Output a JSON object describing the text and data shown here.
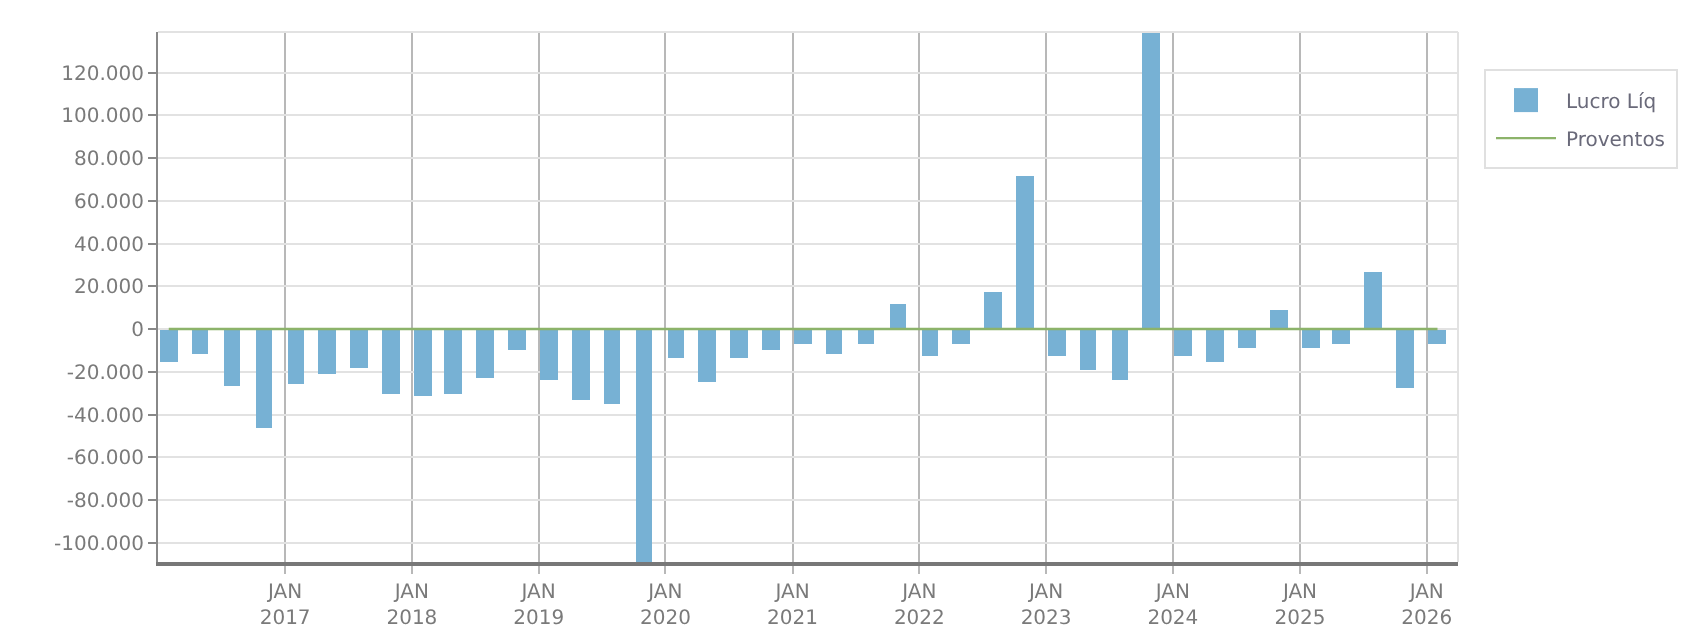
{
  "chart_data": {
    "type": "bar",
    "x": [
      "2016-02",
      "2016-05",
      "2016-08",
      "2016-11",
      "2017-02",
      "2017-05",
      "2017-08",
      "2017-11",
      "2018-02",
      "2018-05",
      "2018-08",
      "2018-11",
      "2019-02",
      "2019-05",
      "2019-08",
      "2019-11",
      "2020-02",
      "2020-05",
      "2020-08",
      "2020-11",
      "2021-02",
      "2021-05",
      "2021-08",
      "2021-11",
      "2022-02",
      "2022-05",
      "2022-08",
      "2022-11",
      "2023-02",
      "2023-05",
      "2023-08",
      "2023-11",
      "2024-02",
      "2024-05",
      "2024-08",
      "2024-11",
      "2025-02",
      "2025-05",
      "2025-08",
      "2025-11",
      "2026-02"
    ],
    "series": [
      {
        "name": "Lucro Líq",
        "color": "#77b1d4",
        "values": [
          -15000,
          -12000,
          -27000,
          -46000,
          -26000,
          -21000,
          -18000,
          -30000,
          -31000,
          -30000,
          -23000,
          -10000,
          -24000,
          -33000,
          -35000,
          -109000,
          -14000,
          -25000,
          -14000,
          -10000,
          -7000,
          -12000,
          -7000,
          12000,
          -13000,
          -7000,
          17000,
          72000,
          -13000,
          -19000,
          -24000,
          139000,
          -13000,
          -15000,
          -9000,
          9000,
          -9000,
          -7000,
          27000,
          -28000,
          -7000
        ]
      },
      {
        "name": "Proventos",
        "type": "line",
        "color": "#8cb36a",
        "values": [
          0,
          0,
          0,
          0,
          0,
          0,
          0,
          0,
          0,
          0,
          0,
          0,
          0,
          0,
          0,
          0,
          0,
          0,
          0,
          0,
          0,
          0,
          0,
          0,
          0,
          0,
          0,
          0,
          0,
          0,
          0,
          0,
          0,
          0,
          0,
          0,
          0,
          0,
          0,
          0,
          0
        ]
      }
    ],
    "xlim": [
      "2016-01",
      "2026-04"
    ],
    "xticks": [
      {
        "value": "2017-01",
        "label": "JAN\n2017"
      },
      {
        "value": "2018-01",
        "label": "JAN\n2018"
      },
      {
        "value": "2019-01",
        "label": "JAN\n2019"
      },
      {
        "value": "2020-01",
        "label": "JAN\n2020"
      },
      {
        "value": "2021-01",
        "label": "JAN\n2021"
      },
      {
        "value": "2022-01",
        "label": "JAN\n2022"
      },
      {
        "value": "2023-01",
        "label": "JAN\n2023"
      },
      {
        "value": "2024-01",
        "label": "JAN\n2024"
      },
      {
        "value": "2025-01",
        "label": "JAN\n2025"
      },
      {
        "value": "2026-01",
        "label": "JAN\n2026"
      }
    ],
    "ylim": [
      -109000,
      139000
    ],
    "yticks": [
      {
        "value": -100000,
        "label": "-100.000"
      },
      {
        "value": -80000,
        "label": "-80.000"
      },
      {
        "value": -60000,
        "label": "-60.000"
      },
      {
        "value": -40000,
        "label": "-40.000"
      },
      {
        "value": -20000,
        "label": "-20.000"
      },
      0,
      {
        "value": 20000,
        "label": "20.000"
      },
      {
        "value": 40000,
        "label": "40.000"
      },
      {
        "value": 60000,
        "label": "60.000"
      },
      {
        "value": 80000,
        "label": "80.000"
      },
      {
        "value": 100000,
        "label": "100.000"
      },
      {
        "value": 120000,
        "label": "120.000"
      }
    ],
    "grid": true,
    "legend": "top right"
  }
}
